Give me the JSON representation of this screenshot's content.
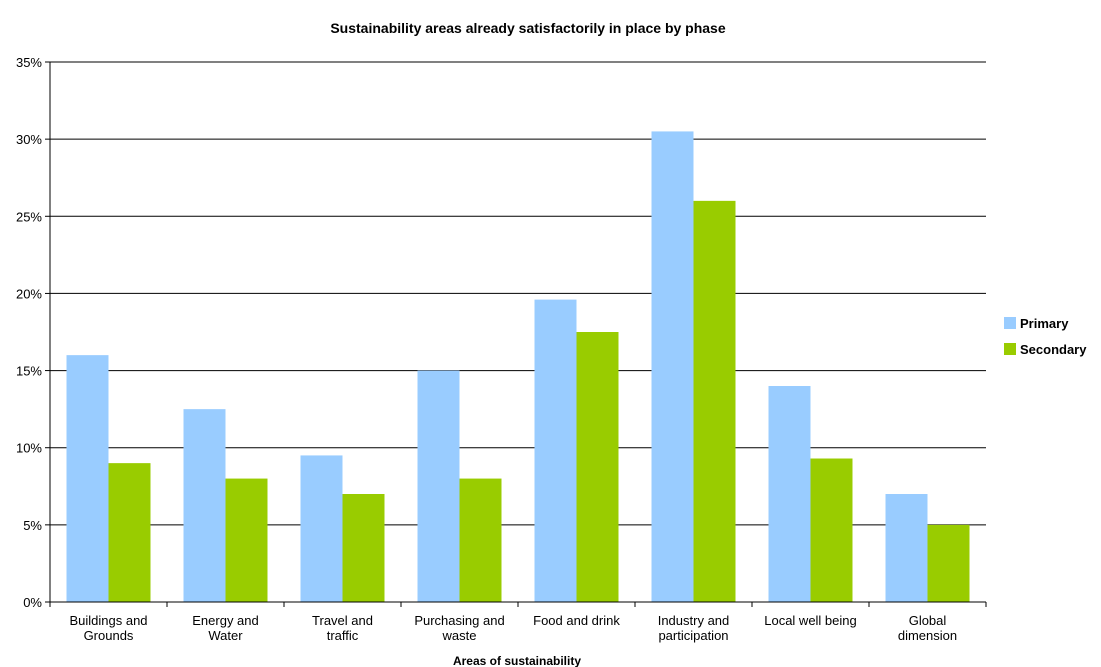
{
  "chart_data": {
    "type": "bar",
    "title": "Sustainability areas already satisfactorily in place by phase",
    "xlabel": "Areas of sustainability",
    "ylabel": "",
    "ylim": [
      0,
      35
    ],
    "y_ticks": [
      "0%",
      "5%",
      "10%",
      "15%",
      "20%",
      "25%",
      "30%",
      "35%"
    ],
    "y_tick_values": [
      0,
      5,
      10,
      15,
      20,
      25,
      30,
      35
    ],
    "grid": true,
    "legend_position": "right",
    "categories": [
      [
        "Buildings and",
        "Grounds"
      ],
      [
        "Energy and",
        "Water"
      ],
      [
        "Travel and",
        "traffic"
      ],
      [
        "Purchasing and",
        "waste"
      ],
      [
        "Food and drink"
      ],
      [
        "Industry and",
        "participation"
      ],
      [
        "Local well being"
      ],
      [
        "Global",
        "dimension"
      ]
    ],
    "series": [
      {
        "name": "Primary",
        "color": "#99ccff",
        "values": [
          16,
          12.5,
          9.5,
          15,
          19.6,
          30.5,
          14,
          7
        ]
      },
      {
        "name": "Secondary",
        "color": "#99cc00",
        "values": [
          9,
          8,
          7,
          8,
          17.5,
          26,
          9.3,
          5
        ]
      }
    ]
  }
}
